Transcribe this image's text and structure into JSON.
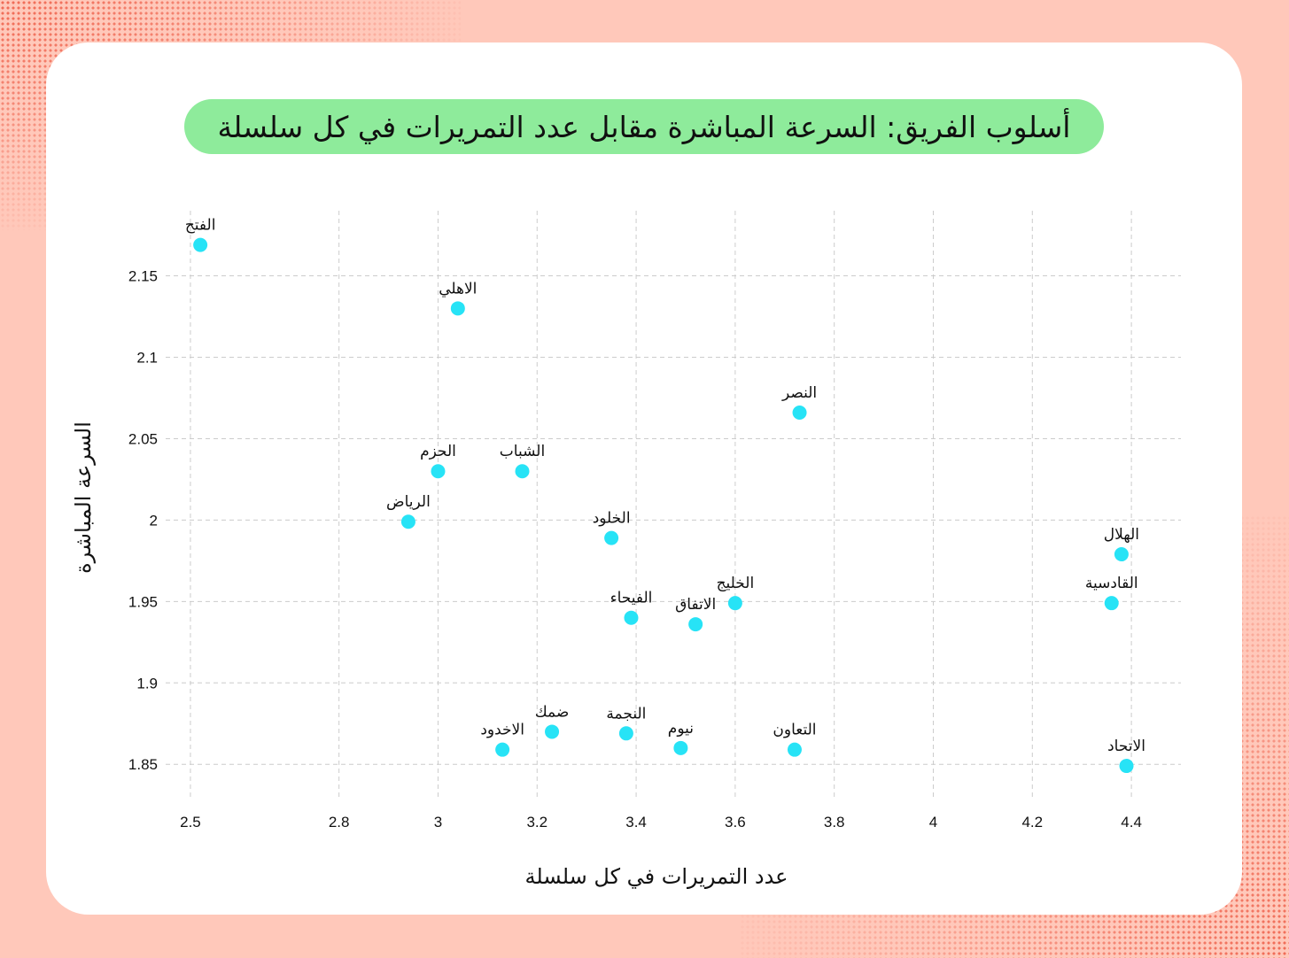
{
  "colors": {
    "background": "#ffc8ba",
    "card": "#ffffff",
    "title_pill": "#8eeb9b",
    "point": "#27e3f6",
    "grid": "#cccccc",
    "halftone": "#f06a55"
  },
  "chart_data": {
    "type": "scatter",
    "title": "أسلوب الفريق: السرعة المباشرة مقابل عدد التمريرات في كل سلسلة",
    "xlabel": "عدد التمريرات في كل سلسلة",
    "ylabel": "السرعة المباشرة",
    "xlim": [
      2.45,
      4.5
    ],
    "ylim": [
      1.83,
      2.19
    ],
    "x_ticks": [
      2.5,
      2.8,
      3,
      3.2,
      3.4,
      3.6,
      3.8,
      4,
      4.2,
      4.4
    ],
    "x_tick_labels": [
      "2.5",
      "2.8",
      "3",
      "3.2",
      "3.4",
      "3.6",
      "3.8",
      "4",
      "4.2",
      "4.4"
    ],
    "y_ticks": [
      1.85,
      1.9,
      1.95,
      2,
      2.05,
      2.1,
      2.15
    ],
    "y_tick_labels": [
      "1.85",
      "1.9",
      "1.95",
      "2",
      "2.05",
      "2.1",
      "2.15"
    ],
    "grid": true,
    "points": [
      {
        "label": "الفتح",
        "x": 2.52,
        "y": 2.169
      },
      {
        "label": "الاهلي",
        "x": 3.04,
        "y": 2.13
      },
      {
        "label": "النصر",
        "x": 3.73,
        "y": 2.066
      },
      {
        "label": "الحزم",
        "x": 3.0,
        "y": 2.03
      },
      {
        "label": "الشباب",
        "x": 3.17,
        "y": 2.03
      },
      {
        "label": "الرياض",
        "x": 2.94,
        "y": 1.999
      },
      {
        "label": "الخلود",
        "x": 3.35,
        "y": 1.989
      },
      {
        "label": "الهلال",
        "x": 4.38,
        "y": 1.979
      },
      {
        "label": "القادسية",
        "x": 4.36,
        "y": 1.949
      },
      {
        "label": "الخليج",
        "x": 3.6,
        "y": 1.949
      },
      {
        "label": "الفيحاء",
        "x": 3.39,
        "y": 1.94
      },
      {
        "label": "الاتفاق",
        "x": 3.52,
        "y": 1.936
      },
      {
        "label": "ضمك",
        "x": 3.23,
        "y": 1.87
      },
      {
        "label": "النجمة",
        "x": 3.38,
        "y": 1.869
      },
      {
        "label": "نيوم",
        "x": 3.49,
        "y": 1.86
      },
      {
        "label": "الاخدود",
        "x": 3.13,
        "y": 1.859
      },
      {
        "label": "التعاون",
        "x": 3.72,
        "y": 1.859
      },
      {
        "label": "الاتحاد",
        "x": 4.39,
        "y": 1.849
      }
    ]
  }
}
